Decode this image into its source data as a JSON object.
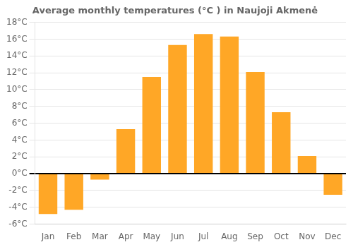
{
  "chart_data": {
    "type": "bar",
    "title": "Average monthly temperatures (°C ) in Naujoji Akmenė",
    "categories": [
      "Jan",
      "Feb",
      "Mar",
      "Apr",
      "May",
      "Jun",
      "Jul",
      "Aug",
      "Sep",
      "Oct",
      "Nov",
      "Dec"
    ],
    "values": [
      -4.8,
      -4.3,
      -0.7,
      5.3,
      11.5,
      15.3,
      16.6,
      16.3,
      12.1,
      7.3,
      2.1,
      -2.5
    ],
    "color": "#FFA726",
    "ylim": [
      -6,
      18
    ],
    "yticks": [
      {
        "value": -6,
        "label": "-6°C"
      },
      {
        "value": -4,
        "label": "-4°C"
      },
      {
        "value": -2,
        "label": "-2°C"
      },
      {
        "value": 0,
        "label": "0°C"
      },
      {
        "value": 2,
        "label": "2°C"
      },
      {
        "value": 4,
        "label": "4°C"
      },
      {
        "value": 6,
        "label": "6°C"
      },
      {
        "value": 8,
        "label": "8°C"
      },
      {
        "value": 10,
        "label": "10°C"
      },
      {
        "value": 12,
        "label": "12°C"
      },
      {
        "value": 14,
        "label": "14°C"
      },
      {
        "value": 16,
        "label": "16°C"
      },
      {
        "value": 18,
        "label": "18°C"
      }
    ],
    "grid": true
  }
}
